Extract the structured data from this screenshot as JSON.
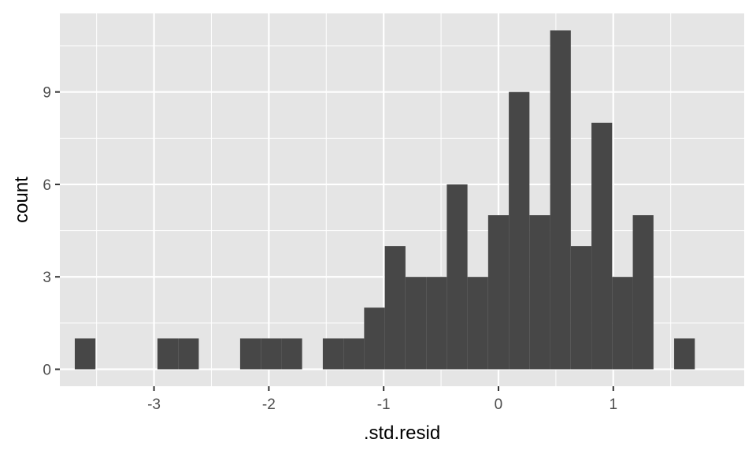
{
  "chart_data": {
    "type": "bar",
    "subtype": "histogram",
    "title": "",
    "xlabel": ".std.resid",
    "ylabel": "count",
    "xlim": [
      -3.82,
      2.14
    ],
    "ylim": [
      -0.55,
      11.55
    ],
    "bins": [
      {
        "x0": -3.69,
        "x1": -3.51,
        "count": 1
      },
      {
        "x0": -3.51,
        "x1": -3.33,
        "count": 0
      },
      {
        "x0": -3.33,
        "x1": -3.15,
        "count": 0
      },
      {
        "x0": -3.15,
        "x1": -2.97,
        "count": 0
      },
      {
        "x0": -2.97,
        "x1": -2.79,
        "count": 1
      },
      {
        "x0": -2.79,
        "x1": -2.61,
        "count": 1
      },
      {
        "x0": -2.61,
        "x1": -2.43,
        "count": 0
      },
      {
        "x0": -2.43,
        "x1": -2.25,
        "count": 0
      },
      {
        "x0": -2.25,
        "x1": -2.07,
        "count": 1
      },
      {
        "x0": -2.07,
        "x1": -1.89,
        "count": 1
      },
      {
        "x0": -1.89,
        "x1": -1.71,
        "count": 1
      },
      {
        "x0": -1.71,
        "x1": -1.53,
        "count": 0
      },
      {
        "x0": -1.53,
        "x1": -1.35,
        "count": 1
      },
      {
        "x0": -1.35,
        "x1": -1.17,
        "count": 1
      },
      {
        "x0": -1.17,
        "x1": -0.99,
        "count": 2
      },
      {
        "x0": -0.99,
        "x1": -0.81,
        "count": 4
      },
      {
        "x0": -0.81,
        "x1": -0.63,
        "count": 3
      },
      {
        "x0": -0.63,
        "x1": -0.45,
        "count": 3
      },
      {
        "x0": -0.45,
        "x1": -0.27,
        "count": 6
      },
      {
        "x0": -0.27,
        "x1": -0.09,
        "count": 3
      },
      {
        "x0": -0.09,
        "x1": 0.09,
        "count": 5
      },
      {
        "x0": 0.09,
        "x1": 0.27,
        "count": 9
      },
      {
        "x0": 0.27,
        "x1": 0.45,
        "count": 5
      },
      {
        "x0": 0.45,
        "x1": 0.63,
        "count": 11
      },
      {
        "x0": 0.63,
        "x1": 0.81,
        "count": 4
      },
      {
        "x0": 0.81,
        "x1": 0.99,
        "count": 8
      },
      {
        "x0": 0.99,
        "x1": 1.17,
        "count": 3
      },
      {
        "x0": 1.17,
        "x1": 1.35,
        "count": 5
      },
      {
        "x0": 1.35,
        "x1": 1.53,
        "count": 0
      },
      {
        "x0": 1.53,
        "x1": 1.71,
        "count": 1
      }
    ],
    "x_major_ticks": [
      -3,
      -2,
      -1,
      0,
      1
    ],
    "x_minor_ticks": [
      -3.5,
      -2.5,
      -1.5,
      -0.5,
      0.5,
      1.5
    ],
    "y_major_ticks": [
      0,
      3,
      6,
      9
    ],
    "y_minor_ticks": [
      1.5,
      4.5,
      7.5,
      10.5
    ],
    "grid": true,
    "legend": "none",
    "colors": {
      "panel": "#e5e5e5",
      "grid": "#ffffff",
      "bar": "#474747",
      "tick_text": "#4d4d4d",
      "tick_mark": "#333333",
      "axis_title": "#000000"
    }
  }
}
